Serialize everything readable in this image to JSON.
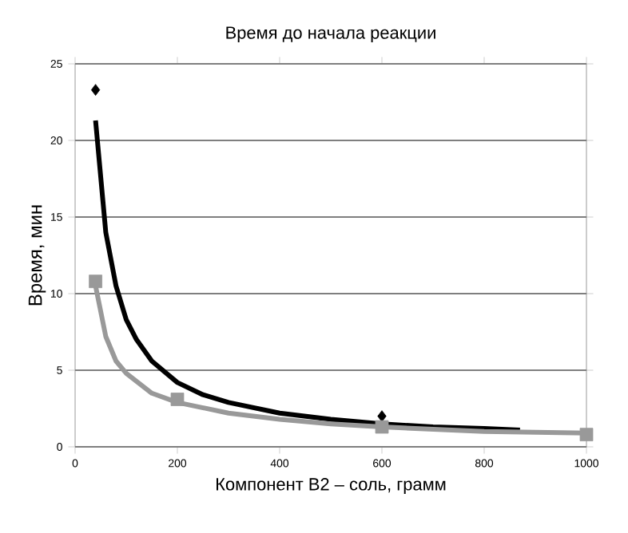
{
  "chart_data": {
    "type": "scatter",
    "title": "Время до начала реакции",
    "xlabel": "Компонент В2 – соль, грамм",
    "ylabel": "Время, мин",
    "xlim": [
      0,
      1000
    ],
    "ylim": [
      0,
      25
    ],
    "xticks": [
      0,
      200,
      400,
      600,
      800,
      1000
    ],
    "yticks": [
      0,
      5,
      10,
      15,
      20,
      25
    ],
    "grid": "y",
    "series": [
      {
        "type": "line",
        "color": "#000000",
        "marker": "none",
        "x": [
          40,
          60,
          80,
          100,
          120,
          150,
          200,
          250,
          300,
          400,
          500,
          600,
          700,
          800,
          870
        ],
        "values": [
          21.3,
          14,
          10.5,
          8.3,
          7,
          5.6,
          4.2,
          3.4,
          2.9,
          2.2,
          1.8,
          1.5,
          1.3,
          1.2,
          1.1
        ]
      },
      {
        "type": "line",
        "color": "#999999",
        "marker": "none",
        "x": [
          40,
          60,
          80,
          100,
          150,
          200,
          300,
          400,
          500,
          600,
          800,
          1000
        ],
        "values": [
          10.5,
          7.2,
          5.6,
          4.8,
          3.5,
          2.9,
          2.2,
          1.8,
          1.5,
          1.3,
          1.0,
          0.9
        ]
      },
      {
        "color": "#000000",
        "marker": "diamond",
        "x": [
          40,
          600
        ],
        "values": [
          23.3,
          2.0
        ]
      },
      {
        "color": "#999999",
        "marker": "square",
        "x": [
          40,
          200,
          600,
          1000
        ],
        "values": [
          10.8,
          3.1,
          1.3,
          0.8
        ]
      }
    ]
  }
}
